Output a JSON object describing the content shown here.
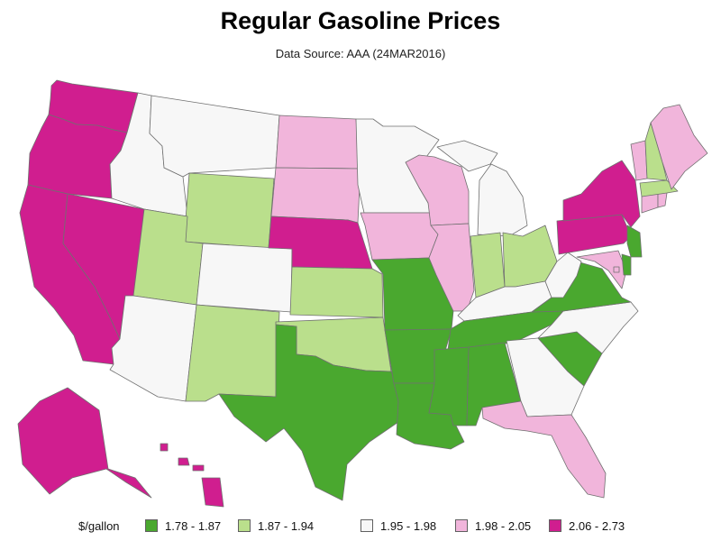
{
  "header": {
    "title": "Regular Gasoline Prices",
    "subtitle": "Data Source: AAA (24MAR2016)"
  },
  "legend": {
    "title": "$/gallon",
    "items": [
      {
        "label": "1.78 - 1.87",
        "color": "#4aa82f"
      },
      {
        "label": "1.87 - 1.94",
        "color": "#badf8c"
      },
      {
        "label": "1.95 - 1.98",
        "color": "#f7f7f7"
      },
      {
        "label": "1.98 - 2.05",
        "color": "#f1b5db"
      },
      {
        "label": "2.06 - 2.73",
        "color": "#d01e8f"
      }
    ]
  },
  "border_color": "#707070",
  "states": [
    {
      "code": "WA",
      "class": 4
    },
    {
      "code": "OR",
      "class": 4
    },
    {
      "code": "CA",
      "class": 4
    },
    {
      "code": "NV",
      "class": 4
    },
    {
      "code": "ID",
      "class": 2
    },
    {
      "code": "MT",
      "class": 2
    },
    {
      "code": "WY",
      "class": 1
    },
    {
      "code": "UT",
      "class": 1
    },
    {
      "code": "AZ",
      "class": 2
    },
    {
      "code": "CO",
      "class": 2
    },
    {
      "code": "NM",
      "class": 1
    },
    {
      "code": "ND",
      "class": 3
    },
    {
      "code": "SD",
      "class": 3
    },
    {
      "code": "NE",
      "class": 4
    },
    {
      "code": "KS",
      "class": 1
    },
    {
      "code": "OK",
      "class": 1
    },
    {
      "code": "TX",
      "class": 0
    },
    {
      "code": "MN",
      "class": 2
    },
    {
      "code": "IA",
      "class": 3
    },
    {
      "code": "MO",
      "class": 0
    },
    {
      "code": "AR",
      "class": 0
    },
    {
      "code": "LA",
      "class": 0
    },
    {
      "code": "WI",
      "class": 3
    },
    {
      "code": "IL",
      "class": 3
    },
    {
      "code": "MI",
      "class": 2
    },
    {
      "code": "IN",
      "class": 1
    },
    {
      "code": "OH",
      "class": 1
    },
    {
      "code": "KY",
      "class": 2
    },
    {
      "code": "TN",
      "class": 0
    },
    {
      "code": "MS",
      "class": 0
    },
    {
      "code": "AL",
      "class": 0
    },
    {
      "code": "GA",
      "class": 2
    },
    {
      "code": "FL",
      "class": 3
    },
    {
      "code": "SC",
      "class": 0
    },
    {
      "code": "NC",
      "class": 2
    },
    {
      "code": "VA",
      "class": 0
    },
    {
      "code": "WV",
      "class": 2
    },
    {
      "code": "PA",
      "class": 4
    },
    {
      "code": "NY",
      "class": 4
    },
    {
      "code": "MD",
      "class": 3
    },
    {
      "code": "DE",
      "class": 0
    },
    {
      "code": "NJ",
      "class": 0
    },
    {
      "code": "CT",
      "class": 3
    },
    {
      "code": "RI",
      "class": 3
    },
    {
      "code": "MA",
      "class": 1
    },
    {
      "code": "VT",
      "class": 3
    },
    {
      "code": "NH",
      "class": 1
    },
    {
      "code": "ME",
      "class": 3
    },
    {
      "code": "DC",
      "class": 3
    },
    {
      "code": "AK",
      "class": 4
    },
    {
      "code": "HI",
      "class": 4
    }
  ]
}
